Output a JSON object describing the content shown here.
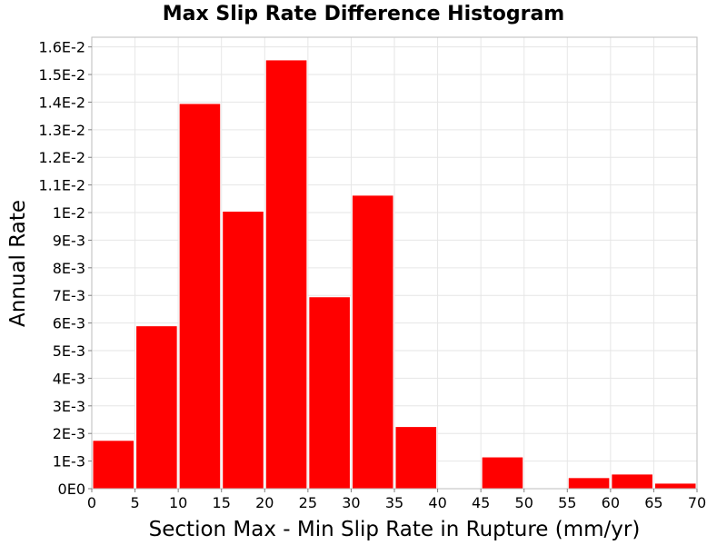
{
  "chart_data": {
    "type": "bar",
    "title": "Max Slip Rate Difference Histogram",
    "xlabel": "Section Max - Min Slip Rate in Rupture (mm/yr)",
    "ylabel": "Annual Rate",
    "xlim": [
      0,
      70
    ],
    "ylim": [
      0,
      0.01635
    ],
    "bin_width": 5,
    "x_ticks": [
      "0",
      "5",
      "10",
      "15",
      "20",
      "25",
      "30",
      "35",
      "40",
      "45",
      "50",
      "55",
      "60",
      "65",
      "70"
    ],
    "y_ticks": [
      "0E0",
      "1E-3",
      "2E-3",
      "3E-3",
      "4E-3",
      "5E-3",
      "6E-3",
      "7E-3",
      "8E-3",
      "9E-3",
      "1E-2",
      "1.1E-2",
      "1.2E-2",
      "1.3E-2",
      "1.4E-2",
      "1.5E-2",
      "1.6E-2"
    ],
    "bins": [
      {
        "start": 0,
        "end": 5,
        "value": 0.00175
      },
      {
        "start": 5,
        "end": 10,
        "value": 0.0059
      },
      {
        "start": 10,
        "end": 15,
        "value": 0.01395
      },
      {
        "start": 15,
        "end": 20,
        "value": 0.01005
      },
      {
        "start": 20,
        "end": 25,
        "value": 0.01553
      },
      {
        "start": 25,
        "end": 30,
        "value": 0.00695
      },
      {
        "start": 30,
        "end": 35,
        "value": 0.01063
      },
      {
        "start": 35,
        "end": 40,
        "value": 0.00225
      },
      {
        "start": 40,
        "end": 45,
        "value": 0
      },
      {
        "start": 45,
        "end": 50,
        "value": 0.00115
      },
      {
        "start": 50,
        "end": 55,
        "value": 0
      },
      {
        "start": 55,
        "end": 60,
        "value": 0.0004
      },
      {
        "start": 60,
        "end": 65,
        "value": 0.00053
      },
      {
        "start": 65,
        "end": 70,
        "value": 0.0002
      }
    ],
    "bar_color": "#ff0000",
    "grid": true,
    "legend": "none"
  }
}
